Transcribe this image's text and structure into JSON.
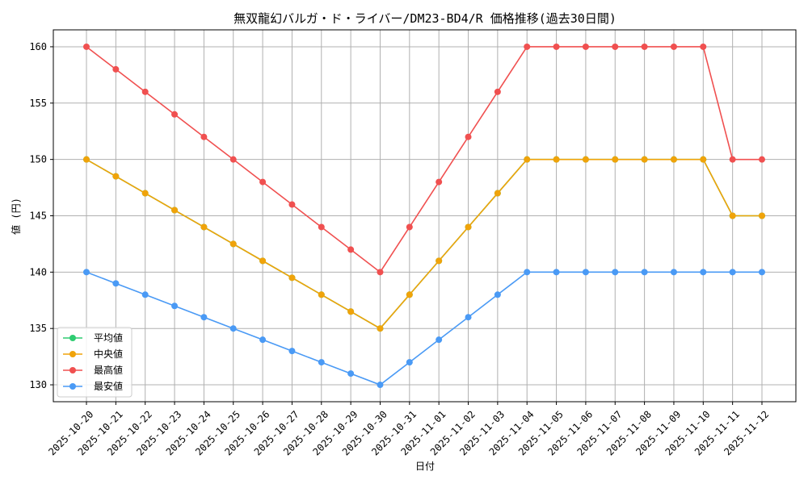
{
  "chart_data": {
    "type": "line",
    "title": "無双龍幻バルガ・ド・ライバー/DM23-BD4/R 価格推移(過去30日間)",
    "xlabel": "日付",
    "ylabel": "値 (円)",
    "ylim": [
      128.5,
      161.5
    ],
    "yticks": [
      130,
      135,
      140,
      145,
      150,
      155,
      160
    ],
    "grid": true,
    "legend_position": "lower-left",
    "categories": [
      "2025-10-20",
      "2025-10-21",
      "2025-10-22",
      "2025-10-23",
      "2025-10-24",
      "2025-10-25",
      "2025-10-26",
      "2025-10-27",
      "2025-10-28",
      "2025-10-29",
      "2025-10-30",
      "2025-10-31",
      "2025-11-01",
      "2025-11-02",
      "2025-11-03",
      "2025-11-04",
      "2025-11-05",
      "2025-11-06",
      "2025-11-07",
      "2025-11-08",
      "2025-11-09",
      "2025-11-10",
      "2025-11-11",
      "2025-11-12"
    ],
    "series": [
      {
        "name": "平均値",
        "color": "#2ecc71",
        "values": [
          150,
          148.5,
          147,
          145.5,
          144,
          142.5,
          141,
          139.5,
          138,
          136.5,
          135,
          138,
          141,
          144,
          147,
          150,
          150,
          150,
          150,
          150,
          150,
          150,
          145,
          145
        ]
      },
      {
        "name": "中央値",
        "color": "#f0a30a",
        "values": [
          150,
          148.5,
          147,
          145.5,
          144,
          142.5,
          141,
          139.5,
          138,
          136.5,
          135,
          138,
          141,
          144,
          147,
          150,
          150,
          150,
          150,
          150,
          150,
          150,
          145,
          145
        ]
      },
      {
        "name": "最高値",
        "color": "#f05050",
        "values": [
          160,
          158,
          156,
          154,
          152,
          150,
          148,
          146,
          144,
          142,
          140,
          144,
          148,
          152,
          156,
          160,
          160,
          160,
          160,
          160,
          160,
          160,
          150,
          150
        ]
      },
      {
        "name": "最安値",
        "color": "#4a9af5",
        "values": [
          140,
          139,
          138,
          137,
          136,
          135,
          134,
          133,
          132,
          131,
          130,
          132,
          134,
          136,
          138,
          140,
          140,
          140,
          140,
          140,
          140,
          140,
          140,
          140
        ]
      }
    ]
  }
}
